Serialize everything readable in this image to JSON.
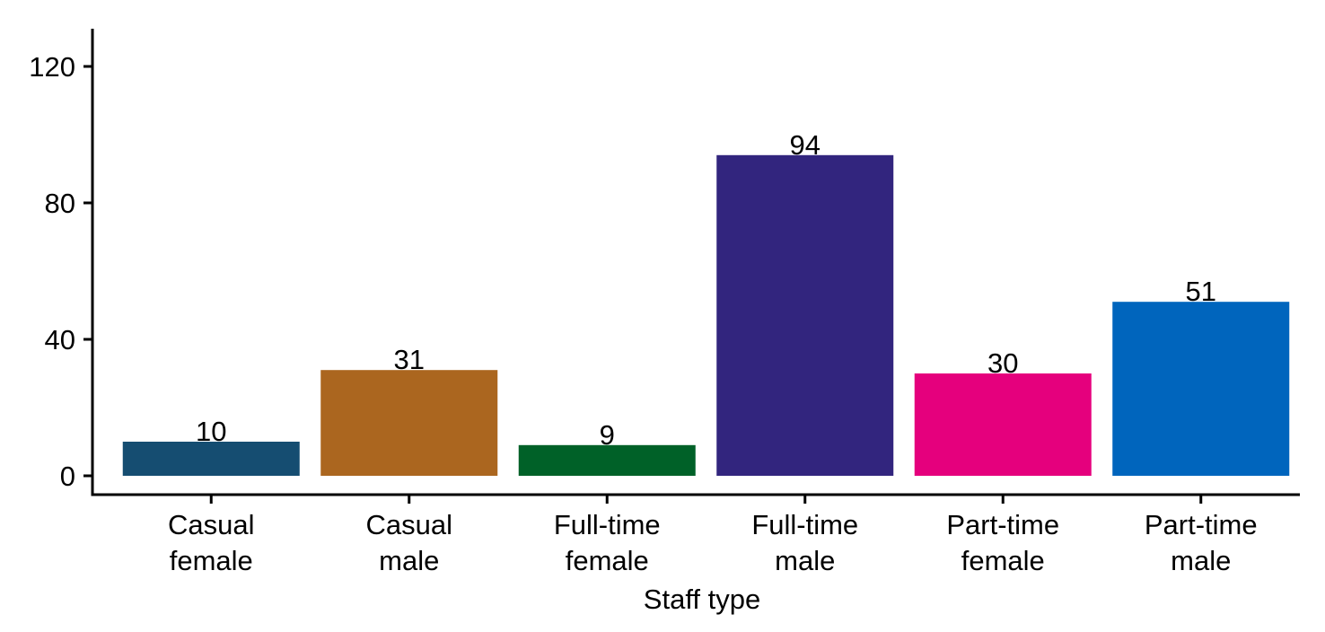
{
  "chart_data": {
    "type": "bar",
    "categories": [
      [
        "Casual",
        "female"
      ],
      [
        "Casual",
        "male"
      ],
      [
        "Full-time",
        "female"
      ],
      [
        "Full-time",
        "male"
      ],
      [
        "Part-time",
        "female"
      ],
      [
        "Part-time",
        "male"
      ]
    ],
    "values": [
      10,
      31,
      9,
      94,
      30,
      51
    ],
    "data_labels": [
      "10",
      "31",
      "9",
      "94",
      "30",
      "51"
    ],
    "colors": [
      "#154D71",
      "#AB661F",
      "#006128",
      "#32257E",
      "#E5007D",
      "#0065BD"
    ],
    "xlabel": "Staff type",
    "ylabel": "",
    "ylim": [
      0,
      120
    ],
    "yticks": [
      0,
      40,
      80,
      120
    ],
    "ytick_labels": [
      "0",
      "40",
      "80",
      "120"
    ],
    "grid": false,
    "legend": "none"
  }
}
